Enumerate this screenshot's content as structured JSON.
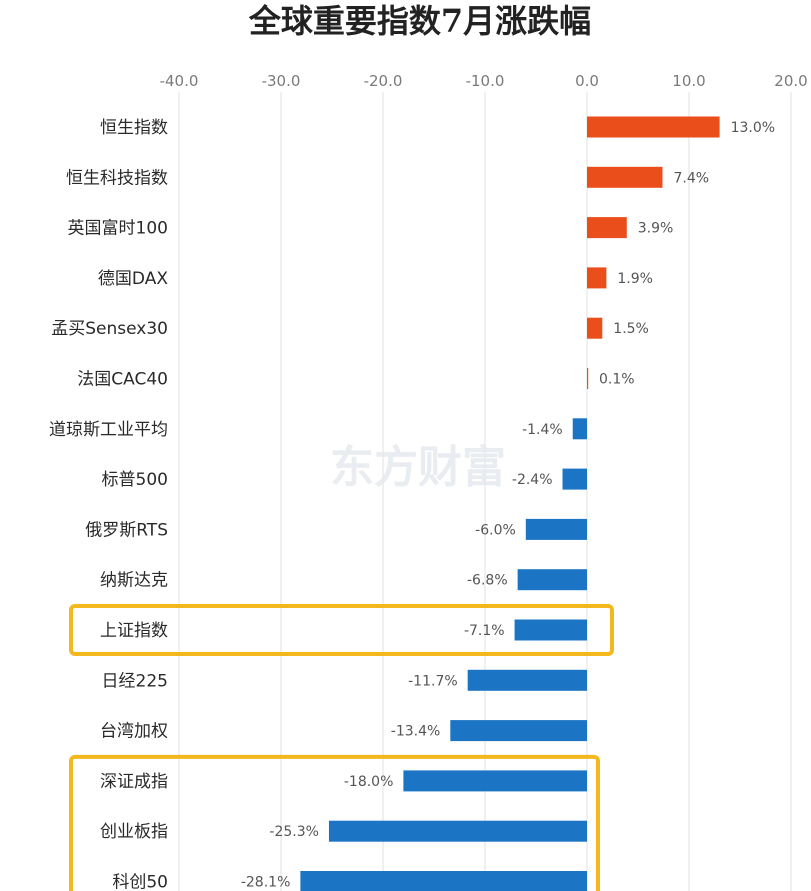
{
  "chart_data": {
    "type": "bar",
    "orientation": "horizontal",
    "title": "全球重要指数7月涨跌幅",
    "xlabel": "",
    "ylabel": "",
    "xlim": [
      -40,
      20
    ],
    "x_ticks": [
      "-40.0",
      "-30.0",
      "-20.0",
      "-10.0",
      "0.0",
      "10.0",
      "20.0"
    ],
    "x_tick_values": [
      -40,
      -30,
      -20,
      -10,
      0,
      10,
      20
    ],
    "axis_position": "top",
    "grid": true,
    "categories": [
      "恒生指数",
      "恒生科技指数",
      "英国富时100",
      "德国DAX",
      "孟买Sensex30",
      "法国CAC40",
      "道琼斯工业平均",
      "标普500",
      "俄罗斯RTS",
      "纳斯达克",
      "上证指数",
      "日经225",
      "台湾加权",
      "深证成指",
      "创业板指",
      "科创50"
    ],
    "values": [
      13.0,
      7.4,
      3.9,
      1.9,
      1.5,
      0.1,
      -1.4,
      -2.4,
      -6.0,
      -6.8,
      -7.1,
      -11.7,
      -13.4,
      -18.0,
      -25.3,
      -28.1
    ],
    "value_labels": [
      "13.0%",
      "7.4%",
      "3.9%",
      "1.9%",
      "1.5%",
      "0.1%",
      "-1.4%",
      "-2.4%",
      "-6.0%",
      "-6.8%",
      "-7.1%",
      "-11.7%",
      "-13.4%",
      "-18.0%",
      "-25.3%",
      "-28.1%"
    ],
    "highlighted_categories": [
      "上证指数",
      "深证成指",
      "创业板指",
      "科创50"
    ],
    "colors": {
      "positive": "#e94e1b",
      "negative": "#1b75c4",
      "grid": "#e2e2e2",
      "highlight": "#f3b81d"
    },
    "watermark": "东方财富"
  }
}
